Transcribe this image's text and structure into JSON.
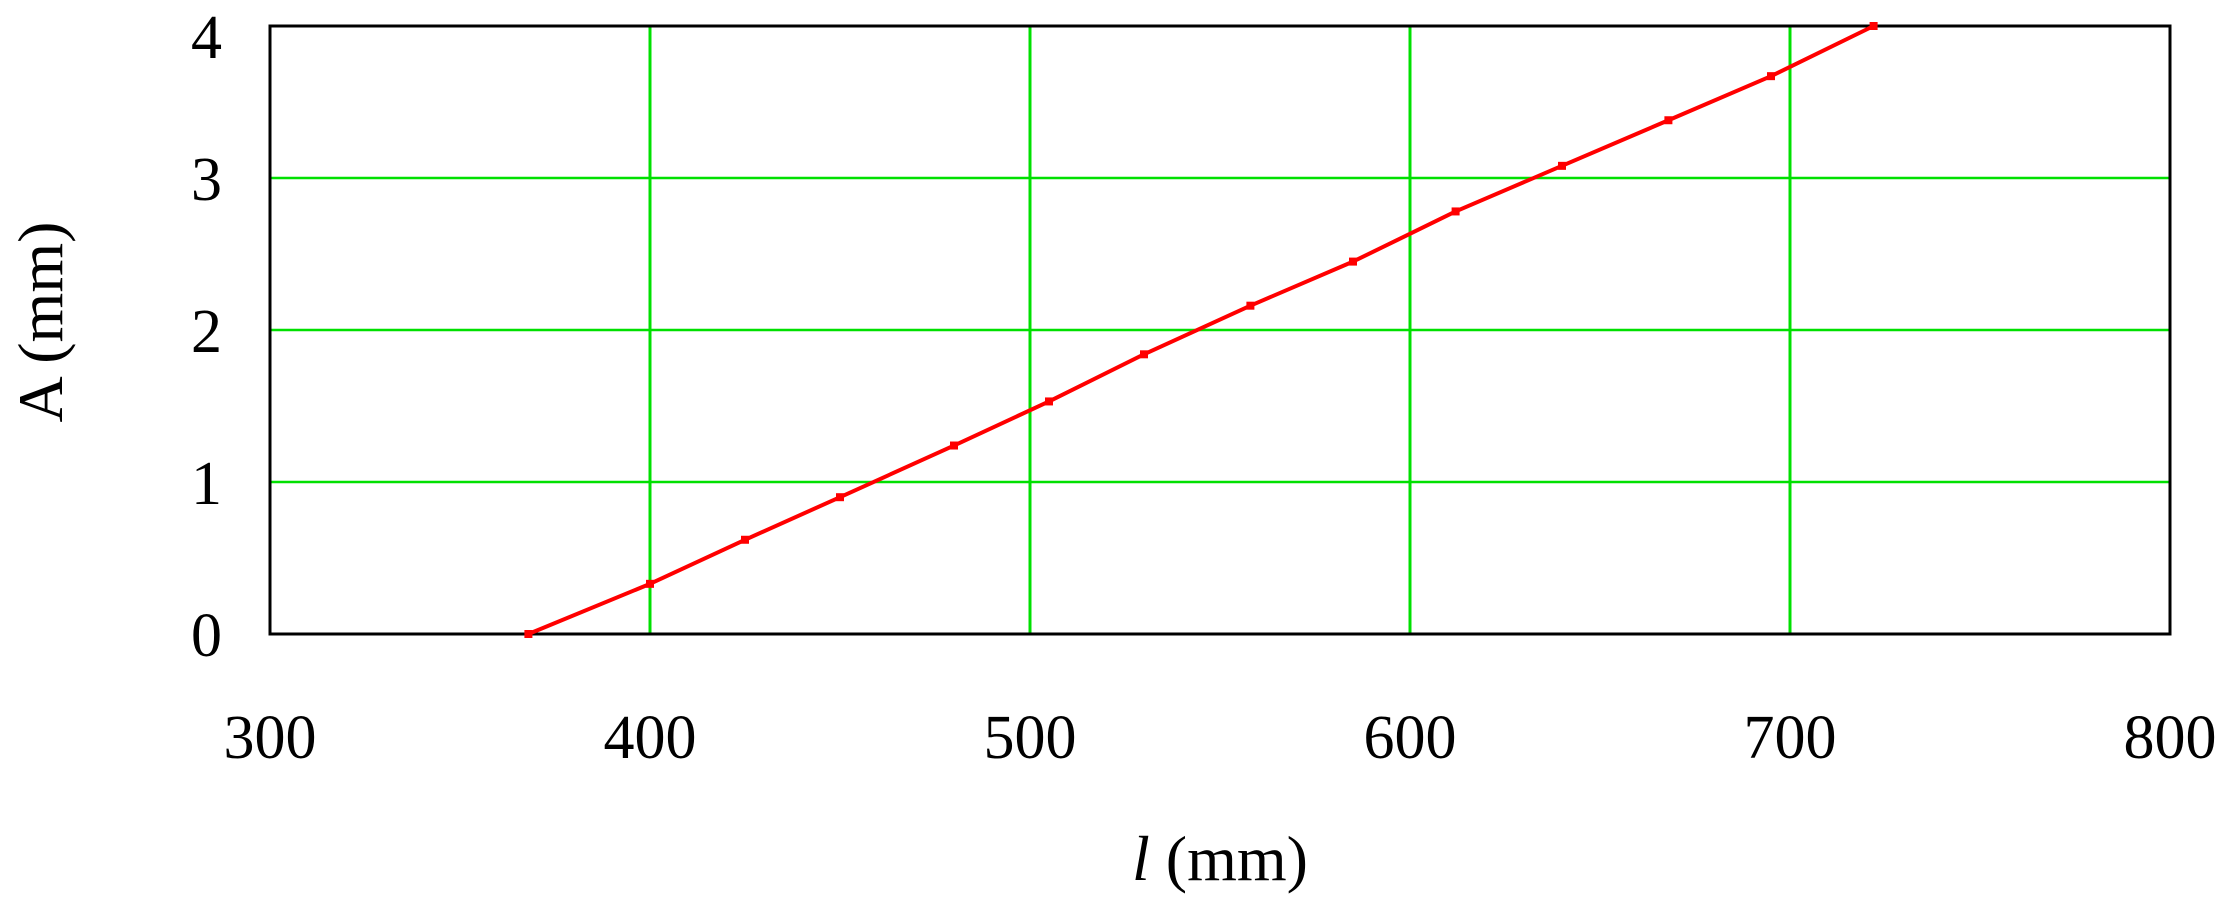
{
  "chart_data": {
    "type": "line",
    "xlabel_var": "l",
    "xlabel_unit": " (mm)",
    "ylabel": "A (mm)",
    "xlim": [
      300,
      800
    ],
    "ylim": [
      0,
      4
    ],
    "x_ticks": [
      "300",
      "400",
      "500",
      "600",
      "700",
      "800"
    ],
    "y_ticks": [
      "0",
      "1",
      "2",
      "3",
      "4"
    ],
    "x_grid": [
      400,
      500,
      600,
      700
    ],
    "y_grid": [
      1,
      2,
      3
    ],
    "grid": true,
    "grid_color": "#00e000",
    "line_color": "#ff0000",
    "series": [
      {
        "x": [
          368,
          400,
          425,
          450,
          480,
          505,
          530,
          558,
          585,
          612,
          640,
          668,
          695,
          722
        ],
        "y": [
          0,
          0.33,
          0.62,
          0.9,
          1.24,
          1.53,
          1.84,
          2.16,
          2.45,
          2.78,
          3.08,
          3.38,
          3.67,
          4.0
        ]
      }
    ]
  }
}
